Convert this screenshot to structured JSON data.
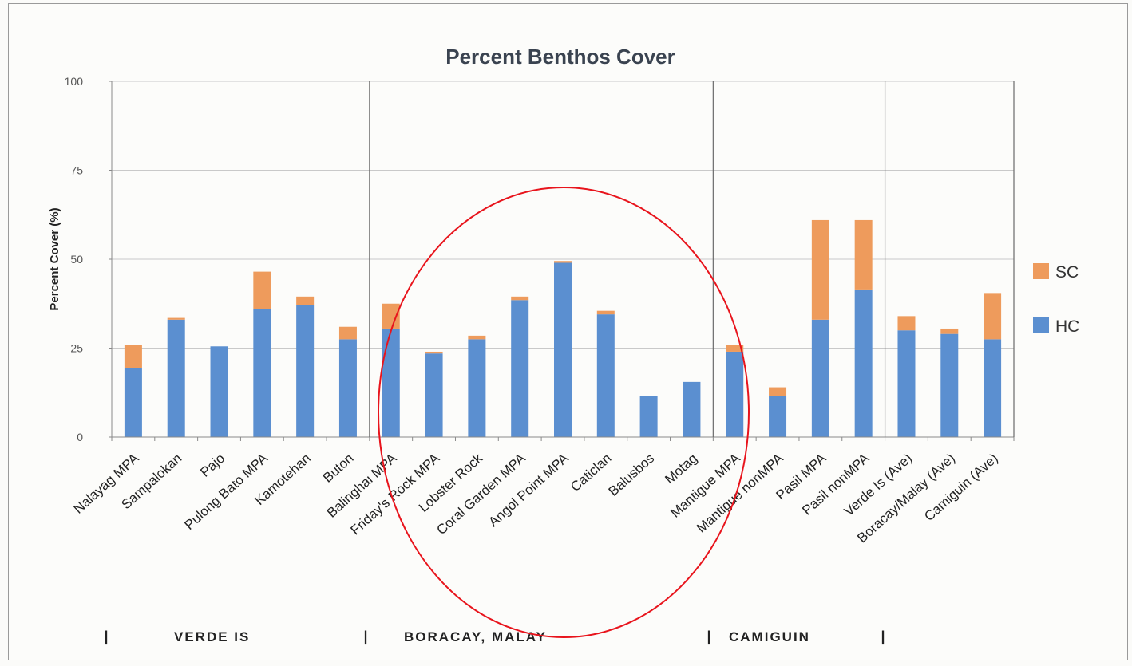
{
  "chart_data": {
    "type": "bar",
    "stacked": true,
    "title": "Percent  Benthos Cover",
    "xlabel": "",
    "ylabel": "Percent Cover (%)",
    "ylim": [
      0,
      100
    ],
    "yticks": [
      0,
      25,
      50,
      75,
      100
    ],
    "grid": true,
    "legend_position": "right",
    "categories": [
      "Nalayag MPA",
      "Sampalokan",
      "Pajo",
      "Pulong Bato MPA",
      "Kamotehan",
      "Buton",
      "Balinghai MPA",
      "Friday's Rock MPA",
      "Lobster Rock",
      "Coral Garden MPA",
      "Angol Point MPA",
      "Caticlan",
      "Balusbos",
      "Motag",
      "Mantigue MPA",
      "Mantigue nonMPA",
      "Pasil MPA",
      "Pasil nonMPA",
      "Verde Is (Ave)",
      "Boracay/Malay (Ave)",
      "Camiguin (Ave)"
    ],
    "series": [
      {
        "name": "HC",
        "color": "#5b8fd0",
        "values": [
          19.5,
          33,
          25.5,
          36,
          37,
          27.5,
          30.5,
          23.5,
          27.5,
          38.5,
          49,
          34.5,
          11.5,
          15.5,
          24,
          11.5,
          33,
          41.5,
          30,
          29,
          27.5
        ]
      },
      {
        "name": "SC",
        "color": "#ee9b5c",
        "values": [
          6.5,
          0.5,
          0,
          10.5,
          2.5,
          3.5,
          7,
          0.5,
          1,
          1,
          0.5,
          1,
          0,
          0,
          2,
          2.5,
          28,
          19.5,
          4,
          1.5,
          13
        ]
      }
    ],
    "group_separators_after_index": [
      5,
      13,
      17
    ],
    "annotation_shape": "ellipse",
    "annotation_color": "#e8141c"
  },
  "groups": {
    "labels": [
      "VERDE IS",
      "BORACAY, MALAY",
      "CAMIGUIN"
    ],
    "separator_glyph": "|"
  }
}
